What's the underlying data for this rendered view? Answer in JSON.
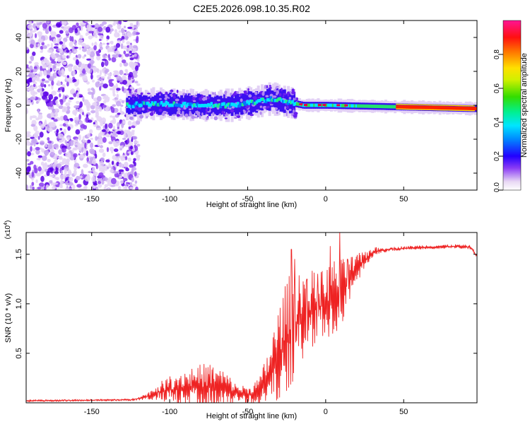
{
  "title": "C2E5.2026.098.10.35.R02",
  "chart_data": [
    {
      "type": "heatmap",
      "xlabel": "Height of straight line (km)",
      "ylabel": "Frequency (Hz)",
      "xlim": [
        -192,
        97
      ],
      "ylim": [
        -50,
        50
      ],
      "xticks": [
        "-150",
        "-100",
        "-50",
        "0",
        "50"
      ],
      "xtick_values": [
        -150,
        -100,
        -50,
        0,
        50
      ],
      "yticks": [
        "40",
        "20",
        "0",
        "-20",
        "-40"
      ],
      "ytick_values": [
        40,
        20,
        0,
        -20,
        -40
      ],
      "noise_region_x": [
        -192,
        -128
      ],
      "signal_ridge": [
        {
          "x": -128,
          "y": 0
        },
        {
          "x": -110,
          "y": 1
        },
        {
          "x": -80,
          "y": 0
        },
        {
          "x": -60,
          "y": 0
        },
        {
          "x": -45,
          "y": 2
        },
        {
          "x": -35,
          "y": 4
        },
        {
          "x": -25,
          "y": 2
        },
        {
          "x": -15,
          "y": 0
        },
        {
          "x": 0,
          "y": 0
        },
        {
          "x": 50,
          "y": -1
        },
        {
          "x": 97,
          "y": -2
        }
      ],
      "colorbar": {
        "label": "Normalized spectral amplitude",
        "ticks": [
          "0.0",
          "0.2",
          "0.4",
          "0.6",
          "0.8"
        ],
        "tick_values": [
          0,
          0.2,
          0.4,
          0.6,
          0.8
        ],
        "range": [
          0,
          1
        ],
        "colors": [
          "#e8d8f4",
          "#a070f0",
          "#6a00f0",
          "#0000ff",
          "#0099ff",
          "#00e5ff",
          "#00f080",
          "#33dd00",
          "#c8f000",
          "#ffff00",
          "#ffa000",
          "#ff3000",
          "#e8003c",
          "#ff1493"
        ]
      }
    },
    {
      "type": "line",
      "xlabel": "Height of straight line (km)",
      "ylabel": "SNR (10 * v/v)",
      "y_multiplier_base": "(x10",
      "y_multiplier_exp": "4",
      "y_multiplier_close": ")",
      "xlim": [
        -192,
        97
      ],
      "ylim": [
        0,
        1.72
      ],
      "xticks": [
        "-150",
        "-100",
        "-50",
        "0",
        "50"
      ],
      "xtick_values": [
        -150,
        -100,
        -50,
        0,
        50
      ],
      "yticks": [
        "0.5",
        "1.0",
        "1.5"
      ],
      "ytick_values": [
        0.5,
        1.0,
        1.5
      ],
      "series_color": "#ee2222",
      "envelope": [
        {
          "x": -192,
          "y": 0.02,
          "amp": 0.01
        },
        {
          "x": -125,
          "y": 0.03,
          "amp": 0.01
        },
        {
          "x": -115,
          "y": 0.06,
          "amp": 0.03
        },
        {
          "x": -105,
          "y": 0.12,
          "amp": 0.1
        },
        {
          "x": -95,
          "y": 0.14,
          "amp": 0.18
        },
        {
          "x": -85,
          "y": 0.15,
          "amp": 0.22
        },
        {
          "x": -75,
          "y": 0.16,
          "amp": 0.25
        },
        {
          "x": -65,
          "y": 0.15,
          "amp": 0.18
        },
        {
          "x": -58,
          "y": 0.1,
          "amp": 0.1
        },
        {
          "x": -50,
          "y": 0.08,
          "amp": 0.08
        },
        {
          "x": -42,
          "y": 0.12,
          "amp": 0.15
        },
        {
          "x": -35,
          "y": 0.3,
          "amp": 0.35
        },
        {
          "x": -28,
          "y": 0.55,
          "amp": 0.55
        },
        {
          "x": -22,
          "y": 0.75,
          "amp": 0.6
        },
        {
          "x": -15,
          "y": 0.9,
          "amp": 0.5
        },
        {
          "x": -5,
          "y": 0.95,
          "amp": 0.35
        },
        {
          "x": 5,
          "y": 1.05,
          "amp": 0.4
        },
        {
          "x": 10,
          "y": 1.1,
          "amp": 0.35
        },
        {
          "x": 20,
          "y": 1.35,
          "amp": 0.15
        },
        {
          "x": 30,
          "y": 1.52,
          "amp": 0.05
        },
        {
          "x": 40,
          "y": 1.55,
          "amp": 0.02
        },
        {
          "x": 60,
          "y": 1.57,
          "amp": 0.02
        },
        {
          "x": 85,
          "y": 1.58,
          "amp": 0.02
        },
        {
          "x": 93,
          "y": 1.57,
          "amp": 0.02
        },
        {
          "x": 97,
          "y": 1.48,
          "amp": 0.02
        }
      ],
      "spikes": [
        {
          "x": -22,
          "y": 1.55
        },
        {
          "x": -20,
          "y": 1.45
        },
        {
          "x": -12,
          "y": 1.25
        },
        {
          "x": -5,
          "y": 1.3
        },
        {
          "x": 3,
          "y": 1.58
        },
        {
          "x": 9,
          "y": 1.72
        },
        {
          "x": 14,
          "y": 1.45
        }
      ]
    }
  ]
}
